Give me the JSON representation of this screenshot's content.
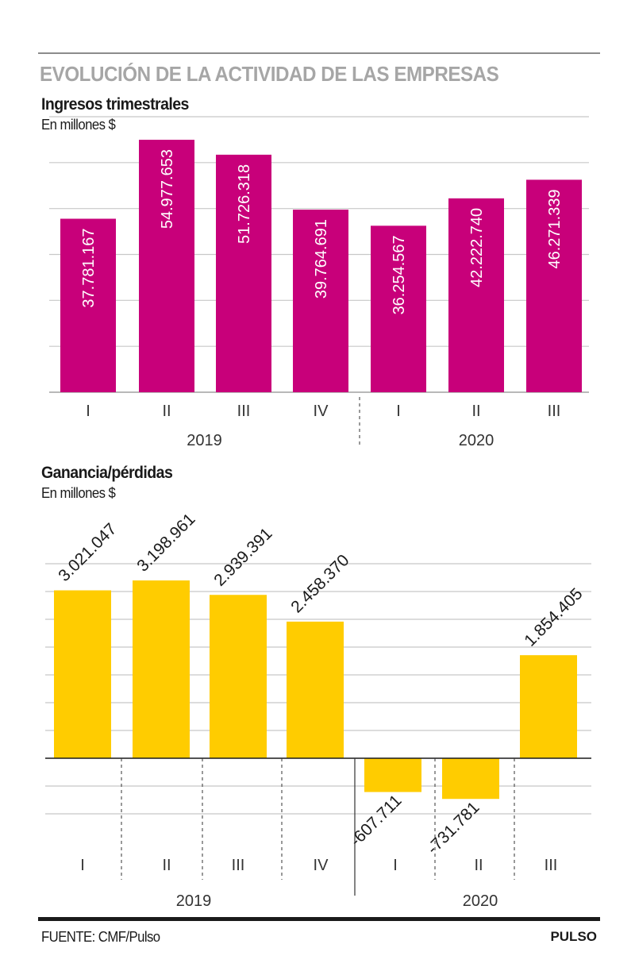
{
  "header": {
    "title": "EVOLUCIÓN DE LA ACTIVIDAD DE LAS EMPRESAS"
  },
  "footer": {
    "source": "FUENTE: CMF/Pulso",
    "brand": "PULSO"
  },
  "colors": {
    "revenue_bar": "#c8007a",
    "profit_bar": "#ffcc00",
    "gridline": "#c8c8c8",
    "title_gray": "#a6a6a6"
  },
  "chart_data": [
    {
      "type": "bar",
      "title": "Ingresos trimestrales",
      "subtitle": "En millones $",
      "categories": [
        "I",
        "II",
        "III",
        "IV",
        "I",
        "II",
        "III"
      ],
      "years": [
        {
          "label": "2019",
          "quarters": 4
        },
        {
          "label": "2020",
          "quarters": 3
        }
      ],
      "values": [
        37781167,
        54977653,
        51726318,
        39764691,
        36254567,
        42222740,
        46271339
      ],
      "labels": [
        "37.781.167",
        "54.977.653",
        "51.726.318",
        "39.764.691",
        "36.254.567",
        "42.222.740",
        "46.271.339"
      ],
      "ylim": [
        0,
        60000000
      ],
      "grid_step": 10000000,
      "grid": true,
      "label_position": "inside-vertical"
    },
    {
      "type": "bar",
      "title": "Ganancia/pérdidas",
      "subtitle": "En millones $",
      "categories": [
        "I",
        "II",
        "III",
        "IV",
        "I",
        "II",
        "III"
      ],
      "years": [
        {
          "label": "2019",
          "quarters": 4
        },
        {
          "label": "2020",
          "quarters": 3
        }
      ],
      "values": [
        3021047,
        3198961,
        2939391,
        2458370,
        -607711,
        -731781,
        1854405
      ],
      "labels": [
        "3.021.047",
        "3.198.961",
        "2.939.391",
        "2.458.370",
        "-607.711",
        "-731.781",
        "1.854.405"
      ],
      "ylim": [
        -1000000,
        3500000
      ],
      "grid_step": 500000,
      "grid": true,
      "label_position": "outside-diagonal"
    }
  ]
}
